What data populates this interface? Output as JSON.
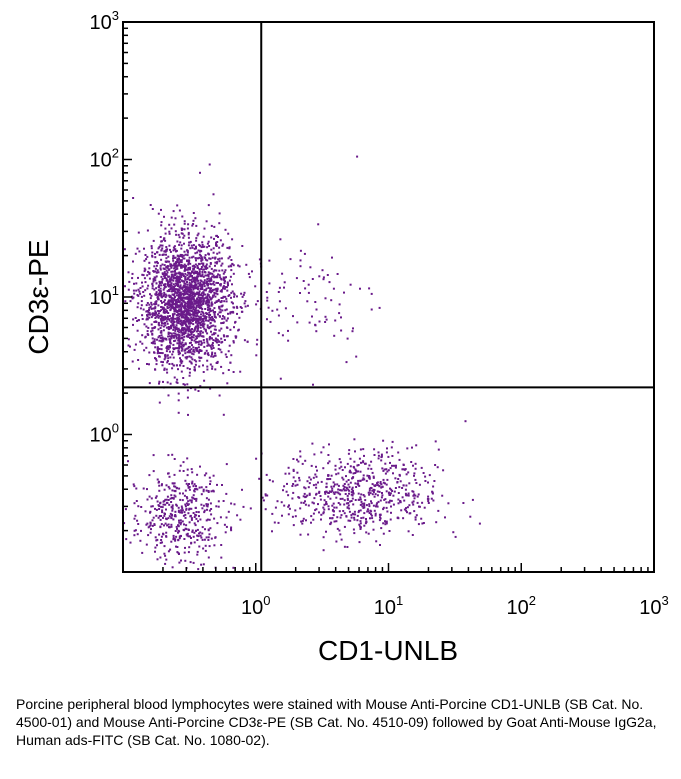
{
  "chart_data": {
    "type": "scatter",
    "xlabel": "CD1-UNLB",
    "ylabel": "CD3ε-PE",
    "x_scale": "log",
    "y_scale": "log",
    "xlim": [
      0.1,
      1000
    ],
    "ylim": [
      0.1,
      1000
    ],
    "x_ticks": [
      {
        "value": 1,
        "base": "10",
        "exp": "0"
      },
      {
        "value": 10,
        "base": "10",
        "exp": "1"
      },
      {
        "value": 100,
        "base": "10",
        "exp": "2"
      },
      {
        "value": 1000,
        "base": "10",
        "exp": "3"
      }
    ],
    "y_ticks": [
      {
        "value": 1,
        "base": "10",
        "exp": "0"
      },
      {
        "value": 10,
        "base": "10",
        "exp": "1"
      },
      {
        "value": 100,
        "base": "10",
        "exp": "2"
      },
      {
        "value": 1000,
        "base": "10",
        "exp": "3"
      }
    ],
    "quadrant_gates": {
      "x": 1.1,
      "y": 2.2
    },
    "grid": false,
    "point_color": "#6a1a8a",
    "populations": [
      {
        "center_x": 0.3,
        "center_y": 9.0,
        "spread_x_log": 0.17,
        "spread_y_log": 0.24,
        "count": 2300
      },
      {
        "center_x": 0.26,
        "center_y": 0.26,
        "spread_x_log": 0.18,
        "spread_y_log": 0.17,
        "count": 450
      },
      {
        "center_x": 6.0,
        "center_y": 0.37,
        "spread_x_log": 0.3,
        "spread_y_log": 0.16,
        "count": 650
      },
      {
        "center_x": 2.2,
        "center_y": 10.0,
        "spread_x_log": 0.3,
        "spread_y_log": 0.25,
        "count": 100
      }
    ],
    "outliers": [
      {
        "x": 5.8,
        "y": 105
      },
      {
        "x": 0.45,
        "y": 92
      },
      {
        "x": 0.38,
        "y": 80
      },
      {
        "x": 16,
        "y": 0.25
      },
      {
        "x": 38,
        "y": 1.25
      },
      {
        "x": 32,
        "y": 0.18
      }
    ]
  },
  "caption": "Porcine peripheral blood lymphocytes were stained with Mouse Anti-Porcine CD1-UNLB (SB Cat. No. 4500-01) and Mouse Anti-Porcine CD3ε-PE (SB Cat. No. 4510-09) followed by Goat Anti-Mouse IgG2a, Human ads-FITC (SB Cat. No. 1080-02)."
}
